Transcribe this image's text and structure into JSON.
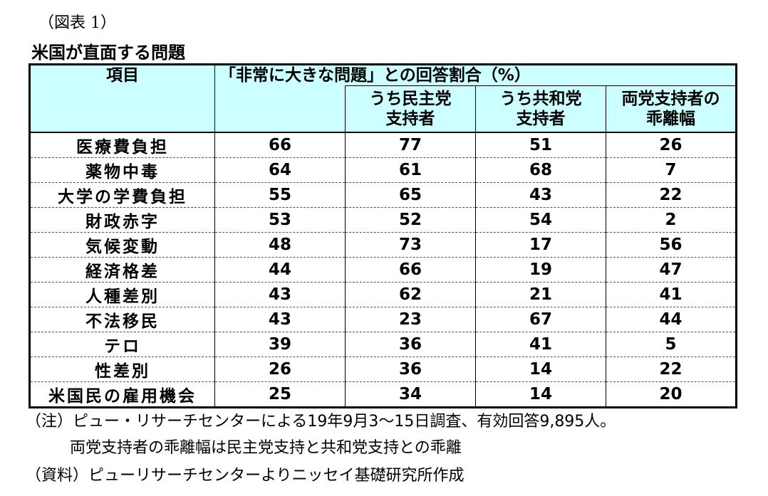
{
  "label": "（図表 1）",
  "title": "米国が直面する問題",
  "table": {
    "header_item": "項目",
    "header_group": "「非常に大きな問題」との回答割合（%）",
    "sub_dem": [
      "うち民主党",
      "支持者"
    ],
    "sub_rep": [
      "うち共和党",
      "支持者"
    ],
    "sub_gap": [
      "両党支持者の",
      "乖離幅"
    ],
    "rows": [
      {
        "item": "医療費負担",
        "total": "66",
        "dem": "77",
        "rep": "51",
        "gap": "26"
      },
      {
        "item": "薬物中毒",
        "total": "64",
        "dem": "61",
        "rep": "68",
        "gap": "7"
      },
      {
        "item": "大学の学費負担",
        "total": "55",
        "dem": "65",
        "rep": "43",
        "gap": "22"
      },
      {
        "item": "財政赤字",
        "total": "53",
        "dem": "52",
        "rep": "54",
        "gap": "2"
      },
      {
        "item": "気候変動",
        "total": "48",
        "dem": "73",
        "rep": "17",
        "gap": "56"
      },
      {
        "item": "経済格差",
        "total": "44",
        "dem": "66",
        "rep": "19",
        "gap": "47"
      },
      {
        "item": "人種差別",
        "total": "43",
        "dem": "62",
        "rep": "21",
        "gap": "41"
      },
      {
        "item": "不法移民",
        "total": "43",
        "dem": "23",
        "rep": "67",
        "gap": "44"
      },
      {
        "item": "テロ",
        "total": "39",
        "dem": "36",
        "rep": "41",
        "gap": "5"
      },
      {
        "item": "性差別",
        "total": "26",
        "dem": "36",
        "rep": "14",
        "gap": "22"
      },
      {
        "item": "米国民の雇用機会",
        "total": "25",
        "dem": "34",
        "rep": "14",
        "gap": "20"
      }
    ]
  },
  "notes": {
    "note1": "（注）ピュー・リサーチセンターによる19年9月3～15日調査、有効回答9,895人。",
    "note2": "両党支持者の乖離幅は民主党支持と共和党支持との乖離",
    "source": "（資料）ピューリサーチセンターよりニッセイ基礎研究所作成"
  }
}
